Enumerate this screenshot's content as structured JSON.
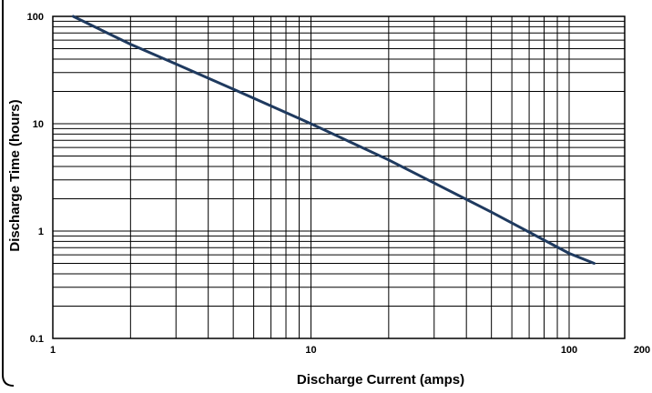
{
  "chart_data": {
    "type": "line",
    "xlabel": "Discharge Current (amps)",
    "ylabel": "Discharge Time (hours)",
    "xscale": "log",
    "yscale": "log",
    "xlim": [
      1,
      200
    ],
    "ylim": [
      0.1,
      100
    ],
    "grid": true,
    "x_ticks": [
      "1",
      "10",
      "100",
      "200"
    ],
    "y_ticks": [
      "0.1",
      "1",
      "10",
      "100"
    ],
    "series": [
      {
        "color": "#1f3a5f",
        "x": [
          1.2,
          2,
          3,
          5,
          10,
          20,
          30,
          50,
          100,
          125
        ],
        "y": [
          100,
          55,
          36,
          21,
          10,
          4.6,
          2.8,
          1.5,
          0.62,
          0.5
        ]
      }
    ]
  }
}
